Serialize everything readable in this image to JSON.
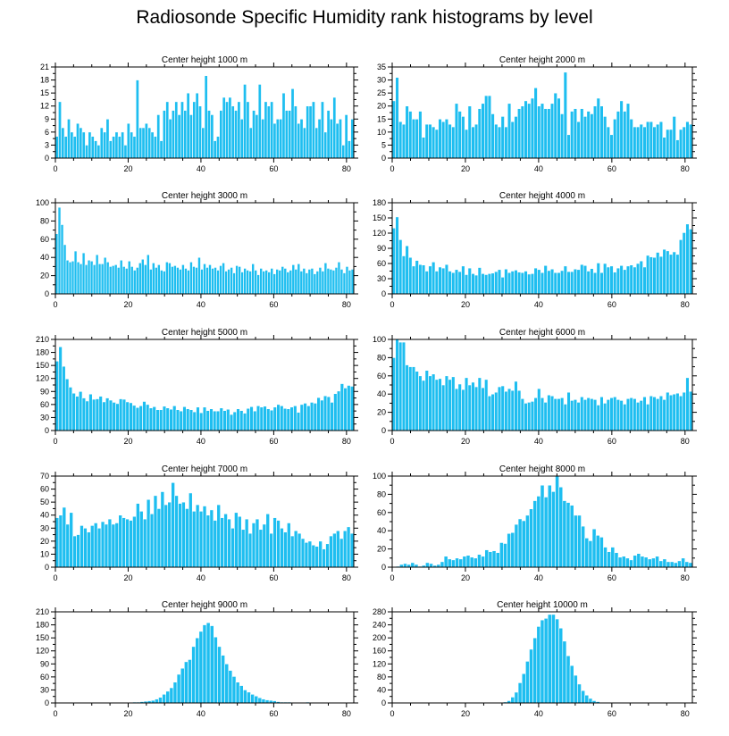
{
  "title": "Radiosonde Specific Humidity rank histograms by level",
  "colors": {
    "bar": "#1ebef0",
    "bar_edge": "#ffffff",
    "axis": "#000000"
  },
  "chart_data": [
    {
      "type": "bar",
      "title": "Center height 1000 m",
      "xlim": [
        0,
        82
      ],
      "ylim": [
        0,
        21
      ],
      "xticks": [
        0,
        20,
        40,
        60,
        80
      ],
      "yticks": [
        0,
        3,
        6,
        9,
        12,
        15,
        18,
        21
      ],
      "values": [
        5,
        13,
        7,
        5,
        9,
        6,
        5,
        8,
        7,
        6,
        3,
        6,
        5,
        4,
        3,
        7,
        6,
        9,
        4,
        5,
        6,
        5,
        6,
        3,
        8,
        6,
        5,
        18,
        7,
        7,
        8,
        7,
        6,
        5,
        10,
        4,
        11,
        13,
        9,
        11,
        13,
        10,
        13,
        11,
        15,
        10,
        13,
        15,
        12,
        7,
        19,
        11,
        10,
        4,
        5,
        11,
        14,
        13,
        14,
        12,
        11,
        13,
        9,
        17,
        13,
        7,
        11,
        10,
        17,
        9,
        13,
        12,
        13,
        8,
        9,
        9,
        15,
        11,
        11,
        16,
        12,
        8,
        9,
        7,
        12,
        12,
        13,
        7,
        9,
        13,
        6,
        11,
        9,
        14,
        8,
        9,
        3,
        10,
        4,
        9
      ]
    },
    {
      "type": "bar",
      "title": "Center height 2000 m",
      "xlim": [
        0,
        82
      ],
      "ylim": [
        0,
        35
      ],
      "xticks": [
        0,
        20,
        40,
        60,
        80
      ],
      "yticks": [
        0,
        5,
        10,
        15,
        20,
        25,
        30,
        35
      ],
      "values": [
        22,
        31,
        14,
        13,
        20,
        18,
        15,
        15,
        18,
        8,
        13,
        13,
        12,
        11,
        15,
        14,
        15,
        13,
        12,
        21,
        18,
        16,
        11,
        20,
        12,
        13,
        19,
        21,
        24,
        24,
        17,
        13,
        12,
        16,
        12,
        21,
        14,
        16,
        19,
        20,
        22,
        21,
        23,
        27,
        20,
        21,
        19,
        19,
        21,
        25,
        23,
        17,
        33,
        9,
        18,
        19,
        14,
        19,
        16,
        18,
        17,
        20,
        23,
        20,
        16,
        12,
        9,
        15,
        18,
        22,
        18,
        21,
        15,
        12,
        12,
        13,
        12,
        14,
        14,
        12,
        13,
        14,
        8,
        11,
        11,
        16,
        7,
        11,
        12,
        14,
        13
      ]
    },
    {
      "type": "bar",
      "title": "Center height 3000 m",
      "xlim": [
        0,
        82
      ],
      "ylim": [
        0,
        100
      ],
      "xticks": [
        0,
        20,
        40,
        60,
        80
      ],
      "yticks": [
        0,
        20,
        40,
        60,
        80,
        100
      ],
      "values": [
        66,
        95,
        76,
        54,
        37,
        35,
        36,
        47,
        35,
        33,
        45,
        32,
        37,
        36,
        32,
        43,
        33,
        33,
        40,
        35,
        30,
        31,
        32,
        29,
        37,
        30,
        28,
        36,
        30,
        26,
        29,
        34,
        38,
        32,
        43,
        27,
        34,
        29,
        32,
        26,
        25,
        35,
        34,
        30,
        31,
        29,
        27,
        32,
        28,
        26,
        35,
        30,
        29,
        40,
        27,
        33,
        29,
        32,
        28,
        29,
        26,
        31,
        34,
        25,
        27,
        29,
        23,
        31,
        30,
        24,
        28,
        26,
        25,
        33,
        26,
        21,
        28,
        25,
        26,
        24,
        28,
        22,
        27,
        26,
        30,
        28,
        24,
        26,
        32,
        27,
        33,
        25,
        28,
        23,
        27,
        28,
        22,
        25,
        29,
        25,
        34,
        28,
        27,
        26,
        29,
        35,
        27,
        23,
        30,
        26,
        27
      ]
    },
    {
      "type": "bar",
      "title": "Center height 4000 m",
      "xlim": [
        0,
        82
      ],
      "ylim": [
        0,
        180
      ],
      "xticks": [
        0,
        20,
        40,
        60,
        80
      ],
      "yticks": [
        0,
        30,
        60,
        90,
        120,
        150,
        180
      ],
      "values": [
        130,
        152,
        107,
        75,
        95,
        72,
        55,
        66,
        58,
        57,
        45,
        55,
        63,
        45,
        53,
        51,
        58,
        45,
        42,
        48,
        44,
        55,
        38,
        51,
        40,
        37,
        52,
        40,
        38,
        40,
        41,
        44,
        48,
        33,
        49,
        42,
        45,
        47,
        43,
        42,
        45,
        39,
        40,
        51,
        48,
        42,
        56,
        46,
        49,
        42,
        42,
        46,
        55,
        44,
        44,
        49,
        48,
        58,
        56,
        45,
        50,
        42,
        61,
        42,
        60,
        53,
        55,
        43,
        51,
        56,
        48,
        55,
        57,
        53,
        60,
        65,
        53,
        76,
        73,
        72,
        82,
        74,
        88,
        85,
        78,
        83,
        78,
        107,
        121,
        138,
        128
      ]
    },
    {
      "type": "bar",
      "title": "Center height 5000 m",
      "xlim": [
        0,
        82
      ],
      "ylim": [
        0,
        210
      ],
      "xticks": [
        0,
        20,
        40,
        60,
        80
      ],
      "yticks": [
        0,
        30,
        60,
        90,
        120,
        150,
        180,
        210
      ],
      "values": [
        160,
        193,
        148,
        119,
        100,
        86,
        79,
        90,
        75,
        68,
        84,
        72,
        73,
        79,
        66,
        75,
        70,
        65,
        62,
        73,
        72,
        66,
        64,
        58,
        53,
        57,
        67,
        60,
        52,
        55,
        48,
        48,
        56,
        52,
        49,
        57,
        48,
        45,
        55,
        50,
        48,
        43,
        54,
        41,
        54,
        46,
        50,
        45,
        45,
        52,
        46,
        49,
        37,
        43,
        50,
        46,
        40,
        51,
        55,
        45,
        57,
        54,
        56,
        50,
        47,
        54,
        60,
        57,
        51,
        50,
        54,
        57,
        42,
        60,
        63,
        57,
        65,
        63,
        76,
        70,
        80,
        78,
        65,
        85,
        91,
        108,
        98,
        104,
        102
      ]
    },
    {
      "type": "bar",
      "title": "Center height 6000 m",
      "xlim": [
        0,
        82
      ],
      "ylim": [
        0,
        100
      ],
      "xticks": [
        0,
        20,
        40,
        60,
        80
      ],
      "yticks": [
        0,
        20,
        40,
        60,
        80,
        100
      ],
      "values": [
        80,
        100,
        97,
        97,
        72,
        70,
        70,
        65,
        60,
        55,
        66,
        60,
        62,
        56,
        57,
        50,
        60,
        56,
        59,
        46,
        51,
        45,
        58,
        50,
        53,
        48,
        58,
        47,
        56,
        38,
        40,
        42,
        48,
        49,
        43,
        46,
        44,
        54,
        44,
        35,
        30,
        31,
        32,
        36,
        46,
        36,
        31,
        39,
        38,
        35,
        35,
        36,
        29,
        42,
        33,
        34,
        31,
        37,
        34,
        36,
        35,
        34,
        28,
        37,
        30,
        34,
        36,
        37,
        34,
        33,
        29,
        35,
        36,
        35,
        31,
        33,
        37,
        29,
        38,
        37,
        35,
        38,
        34,
        42,
        39,
        40,
        41,
        38,
        42,
        58,
        43
      ]
    },
    {
      "type": "bar",
      "title": "Center height 7000 m",
      "xlim": [
        0,
        82
      ],
      "ylim": [
        0,
        70
      ],
      "xticks": [
        0,
        20,
        40,
        60,
        80
      ],
      "yticks": [
        0,
        10,
        20,
        30,
        40,
        50,
        60,
        70
      ],
      "values": [
        38,
        40,
        46,
        33,
        42,
        24,
        25,
        32,
        30,
        27,
        32,
        34,
        30,
        35,
        33,
        37,
        33,
        34,
        40,
        38,
        37,
        36,
        39,
        49,
        43,
        37,
        52,
        41,
        55,
        45,
        58,
        48,
        50,
        65,
        55,
        49,
        50,
        45,
        57,
        43,
        48,
        43,
        47,
        40,
        44,
        36,
        48,
        38,
        41,
        37,
        30,
        42,
        39,
        29,
        37,
        26,
        34,
        37,
        29,
        33,
        41,
        26,
        38,
        36,
        30,
        27,
        34,
        24,
        28,
        26,
        22,
        19,
        20,
        17,
        16,
        20,
        14,
        18,
        24,
        26,
        28,
        22,
        28,
        31,
        26
      ]
    },
    {
      "type": "bar",
      "title": "Center height 8000 m",
      "xlim": [
        0,
        82
      ],
      "ylim": [
        0,
        100
      ],
      "xticks": [
        0,
        20,
        40,
        60,
        80
      ],
      "yticks": [
        0,
        20,
        40,
        60,
        80,
        100
      ],
      "values": [
        0,
        1,
        3,
        4,
        3,
        5,
        3,
        1,
        2,
        5,
        4,
        2,
        3,
        6,
        12,
        9,
        8,
        10,
        9,
        12,
        13,
        11,
        10,
        14,
        12,
        19,
        17,
        18,
        16,
        27,
        26,
        37,
        38,
        47,
        53,
        51,
        57,
        64,
        73,
        78,
        90,
        77,
        90,
        83,
        100,
        88,
        73,
        71,
        68,
        57,
        57,
        45,
        32,
        29,
        42,
        35,
        33,
        22,
        17,
        22,
        16,
        11,
        12,
        10,
        8,
        13,
        15,
        12,
        11,
        9,
        10,
        12,
        7,
        9,
        6,
        6,
        5,
        7,
        10,
        6,
        5
      ]
    },
    {
      "type": "bar",
      "title": "Center height 9000 m",
      "xlim": [
        0,
        82
      ],
      "ylim": [
        0,
        210
      ],
      "xticks": [
        0,
        20,
        40,
        60,
        80
      ],
      "yticks": [
        0,
        30,
        60,
        90,
        120,
        150,
        180,
        210
      ],
      "values": [
        0,
        0,
        0,
        0,
        0,
        0,
        0,
        0,
        0,
        0,
        0,
        0,
        0,
        0,
        0,
        0,
        0,
        0,
        0,
        0,
        1,
        2,
        2,
        3,
        4,
        5,
        6,
        9,
        13,
        20,
        27,
        35,
        48,
        66,
        80,
        95,
        100,
        130,
        150,
        165,
        180,
        185,
        178,
        152,
        130,
        110,
        90,
        75,
        61,
        48,
        40,
        30,
        25,
        20,
        16,
        12,
        9,
        7,
        6,
        5,
        3,
        2,
        2,
        2,
        1,
        1,
        1,
        1,
        2,
        1,
        1,
        1,
        1,
        0,
        1,
        0,
        0,
        0,
        0,
        0,
        0
      ]
    },
    {
      "type": "bar",
      "title": "Center height 10000 m",
      "xlim": [
        0,
        82
      ],
      "ylim": [
        0,
        280
      ],
      "xticks": [
        0,
        20,
        40,
        60,
        80
      ],
      "yticks": [
        0,
        40,
        80,
        120,
        160,
        200,
        240,
        280
      ],
      "values": [
        0,
        0,
        0,
        0,
        0,
        0,
        0,
        0,
        0,
        0,
        0,
        0,
        0,
        0,
        0,
        0,
        0,
        0,
        0,
        0,
        0,
        0,
        0,
        0,
        0,
        0,
        0,
        0,
        1,
        2,
        3,
        7,
        18,
        33,
        62,
        90,
        128,
        165,
        200,
        235,
        255,
        260,
        272,
        272,
        258,
        230,
        190,
        145,
        115,
        85,
        58,
        38,
        24,
        14,
        7,
        4,
        2,
        1,
        1,
        0,
        0,
        0,
        0,
        0,
        0,
        0,
        0,
        0,
        0,
        0,
        0,
        0,
        0,
        0,
        0,
        0,
        0,
        0,
        0,
        0,
        0
      ]
    }
  ]
}
